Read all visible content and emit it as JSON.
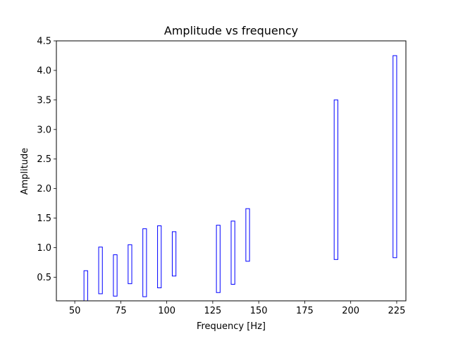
{
  "chart_data": {
    "type": "bar",
    "title": "Amplitude vs frequency",
    "xlabel": "Frequency [Hz]",
    "ylabel": "Amplitude",
    "xlim": [
      40,
      230
    ],
    "ylim": [
      0.1,
      4.5
    ],
    "xticks": [
      50,
      75,
      100,
      125,
      150,
      175,
      200,
      225
    ],
    "yticks": [
      0.5,
      1.0,
      1.5,
      2.0,
      2.5,
      3.0,
      3.5,
      4.0,
      4.5
    ],
    "ytick_labels": [
      "0.5",
      "1.0",
      "1.5",
      "2.0",
      "2.5",
      "3.0",
      "3.5",
      "4.0",
      "4.5"
    ],
    "bar_width": 2,
    "grid": false,
    "colors": {
      "bar_edge": "#0000ff",
      "bar_fill": "none",
      "axes": "#000000"
    },
    "bars": [
      {
        "x": 56,
        "low": 0.0,
        "high": 0.61
      },
      {
        "x": 64,
        "low": 0.22,
        "high": 1.01
      },
      {
        "x": 72,
        "low": 0.18,
        "high": 0.88
      },
      {
        "x": 80,
        "low": 0.39,
        "high": 1.05
      },
      {
        "x": 88,
        "low": 0.17,
        "high": 1.32
      },
      {
        "x": 96,
        "low": 0.32,
        "high": 1.37
      },
      {
        "x": 104,
        "low": 0.52,
        "high": 1.27
      },
      {
        "x": 128,
        "low": 0.24,
        "high": 1.38
      },
      {
        "x": 136,
        "low": 0.38,
        "high": 1.45
      },
      {
        "x": 144,
        "low": 0.77,
        "high": 1.66
      },
      {
        "x": 192,
        "low": 0.8,
        "high": 3.5
      },
      {
        "x": 224,
        "low": 0.83,
        "high": 4.25
      }
    ]
  }
}
